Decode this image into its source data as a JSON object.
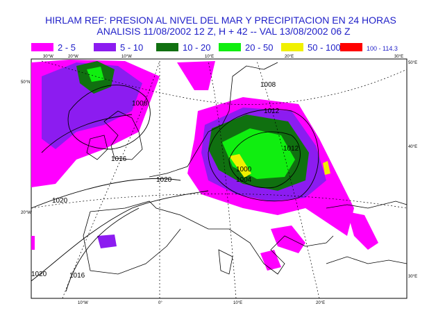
{
  "header": {
    "title": "HIRLAM REF:  PRESION AL NIVEL DEL MAR Y  PRECIPITACION EN 24 HORAS",
    "subtitle": "ANALISIS 11/08/2002  12 Z,  H + 42  -- VAL 13/08/2002  06 Z"
  },
  "legend": [
    {
      "label": "2 - 5",
      "color": "#ff00ff"
    },
    {
      "label": "5 - 10",
      "color": "#8c1cf0"
    },
    {
      "label": "10 - 20",
      "color": "#107010"
    },
    {
      "label": "20 - 50",
      "color": "#10ee10"
    },
    {
      "label": "50 - 100",
      "color": "#f0f000"
    },
    {
      "label": "100 - 114.3",
      "color": "#ff0000"
    }
  ],
  "map": {
    "lon_labels_top": [
      "30°W",
      "20°W",
      "10°W",
      "10°E",
      "20°E",
      "30°E"
    ],
    "lon_labels_bottom": [
      "10°W",
      "0°",
      "10°E",
      "20°E"
    ],
    "lat_labels_left": [
      "50°N",
      "20°W"
    ],
    "lat_labels_right": [
      "50°E",
      "40°E",
      "30°E"
    ],
    "isobar_labels": [
      "1008",
      "1012",
      "1016",
      "1020",
      "1020",
      "1016",
      "1020",
      "1008",
      "1004",
      "1012",
      "1000"
    ]
  }
}
